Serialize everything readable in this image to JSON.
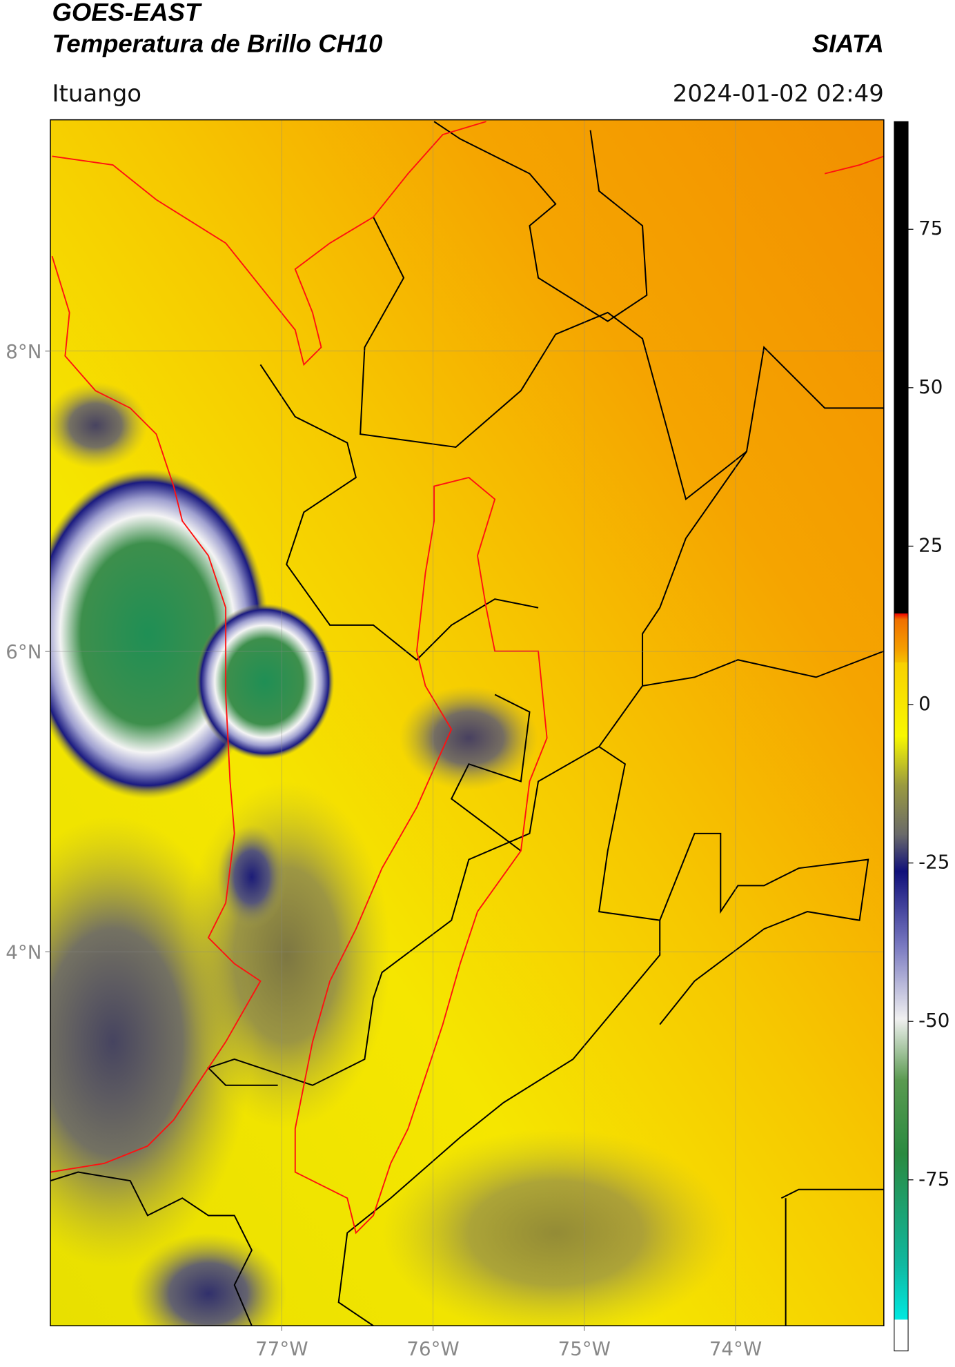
{
  "header": {
    "title_line1": "GOES-EAST",
    "title_line2": "Temperatura de Brillo CH10",
    "agency": "SIATA",
    "location": "Ituango",
    "datetime": "2024-01-02 02:49"
  },
  "map": {
    "xlim": [
      -78.53,
      -73.02
    ],
    "ylim": [
      1.51,
      9.54
    ],
    "xticks": [
      {
        "value": -77,
        "label": "77°W"
      },
      {
        "value": -76,
        "label": "76°W"
      },
      {
        "value": -75,
        "label": "75°W"
      },
      {
        "value": -74,
        "label": "74°W"
      }
    ],
    "yticks": [
      {
        "value": 8,
        "label": "8°N"
      },
      {
        "value": 6,
        "label": "6°N"
      },
      {
        "value": 4,
        "label": "4°N"
      }
    ],
    "grid": true
  },
  "colorbar": {
    "lim": [
      -102,
      92
    ],
    "ticks": [
      75,
      50,
      25,
      0,
      -25,
      -50,
      -75
    ]
  }
}
